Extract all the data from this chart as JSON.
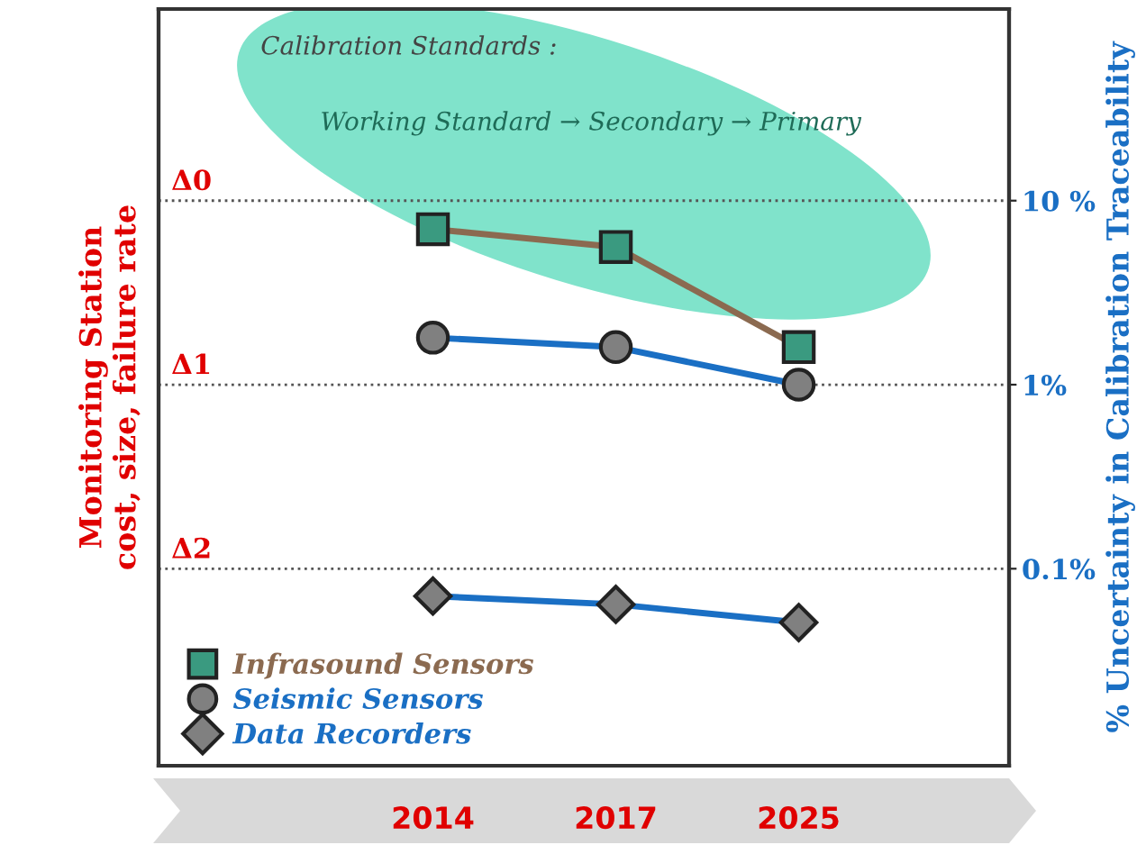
{
  "chart_data": {
    "type": "line",
    "categories": [
      "2014",
      "2017",
      "2025"
    ],
    "series": [
      {
        "name": "Infrasound Sensors",
        "color": "#8b6a50",
        "colors": [
          "#3a9a80",
          "#3a9a80",
          "#3a9a80"
        ],
        "marker": "square",
        "axis": "y2",
        "values": [
          7.0,
          5.6,
          1.6
        ]
      },
      {
        "name": "Seismic Sensors",
        "color": "#1a6fc4",
        "colors": [
          "#808080",
          "#808080",
          "#808080"
        ],
        "marker": "circle",
        "axis": "y2",
        "values": [
          1.8,
          1.6,
          1.0
        ]
      },
      {
        "name": "Data Recorders",
        "color": "#1a6fc4",
        "colors": [
          "#808080",
          "#808080",
          "#808080"
        ],
        "marker": "diamond",
        "axis": "y2",
        "values": [
          0.071,
          0.064,
          0.051
        ]
      }
    ],
    "y2label": "% Uncertainty in Calibration Traceability",
    "log": "y2",
    "y2lim": [
      0.0085,
      110
    ],
    "y2ticks": [
      {
        "value": 10,
        "label": "10 %"
      },
      {
        "value": 1,
        "label": "1%"
      },
      {
        "value": 0.1,
        "label": "0.1%"
      }
    ],
    "grid": "y",
    "legend": "bottom left",
    "annotations": [
      "Calibration Standards :",
      "Working Standard → Secondary → Primary",
      "Monitoring Station\ncost, size, failure rate",
      "Δ0",
      "Δ1",
      "Δ2"
    ]
  }
}
